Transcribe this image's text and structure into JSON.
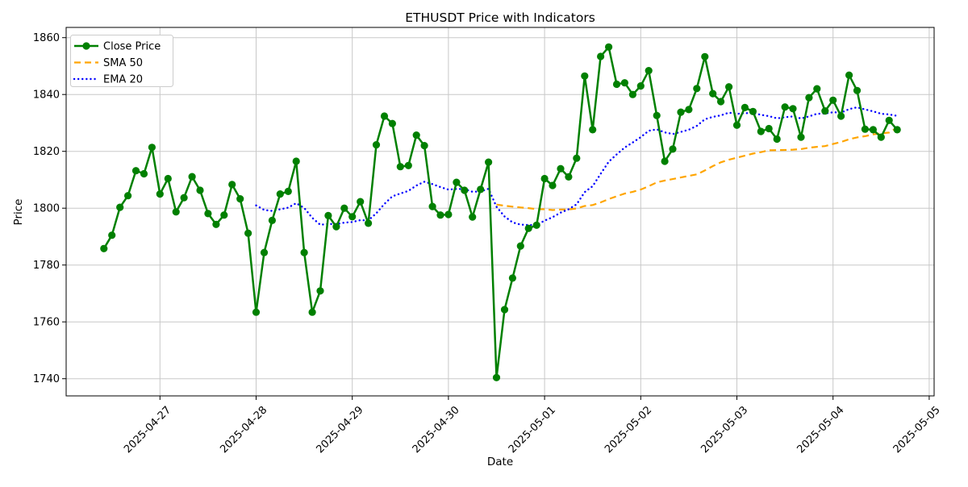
{
  "figure": {
    "title": "ETHUSDT Price with Indicators",
    "xlabel": "Date",
    "ylabel": "Price"
  },
  "legend": {
    "position": "upper left",
    "items": [
      {
        "label": "Close Price",
        "color": "#008000",
        "style": "solid_with_marker"
      },
      {
        "label": "SMA 50",
        "color": "#FFA500",
        "style": "dashed"
      },
      {
        "label": "EMA 20",
        "color": "#0000FF",
        "style": "dotted"
      }
    ]
  },
  "chart_data": {
    "type": "line",
    "title": "ETHUSDT Price with Indicators",
    "xlabel": "Date",
    "ylabel": "Price",
    "x_start": "2025-04-26 10:00",
    "x_interval_hours": 2,
    "n_points": 100,
    "x_tick_labels": [
      "2025-04-27",
      "2025-04-28",
      "2025-04-29",
      "2025-04-30",
      "2025-05-01",
      "2025-05-02",
      "2025-05-03",
      "2025-05-04",
      "2025-05-05"
    ],
    "yticks": [
      1740,
      1760,
      1780,
      1800,
      1820,
      1840,
      1860
    ],
    "ylim": [
      1734.0,
      1863.6
    ],
    "grid": true,
    "grid_color": "#c8c8c8",
    "series": [
      {
        "name": "Close Price",
        "color": "#008000",
        "style": "solid",
        "marker": "circle",
        "values": [
          1785.8,
          1790.5,
          1800.3,
          1804.4,
          1813.2,
          1812.1,
          1821.4,
          1805.0,
          1810.4,
          1798.7,
          1803.7,
          1811.1,
          1806.3,
          1798.1,
          1794.3,
          1797.6,
          1808.3,
          1803.3,
          1791.2,
          1763.4,
          1784.4,
          1795.7,
          1805.0,
          1805.9,
          1816.5,
          1784.4,
          1763.4,
          1770.9,
          1797.4,
          1793.5,
          1800.0,
          1797.0,
          1802.3,
          1794.7,
          1822.3,
          1832.4,
          1829.8,
          1814.6,
          1815.0,
          1825.7,
          1822.0,
          1800.6,
          1797.6,
          1797.8,
          1809.1,
          1806.3,
          1796.9,
          1806.6,
          1816.2,
          1740.4,
          1764.3,
          1775.4,
          1786.7,
          1792.9,
          1794.0,
          1810.4,
          1808.0,
          1813.9,
          1811.0,
          1817.6,
          1846.5,
          1827.6,
          1853.4,
          1856.7,
          1843.6,
          1844.1,
          1840.0,
          1843.0,
          1848.4,
          1832.6,
          1816.5,
          1820.8,
          1833.8,
          1834.7,
          1842.1,
          1853.3,
          1840.3,
          1837.5,
          1842.7,
          1829.2,
          1835.4,
          1834.0,
          1827.0,
          1828.0,
          1824.3,
          1835.6,
          1835.0,
          1825.0,
          1838.9,
          1842.0,
          1834.2,
          1838.0,
          1832.4,
          1846.8,
          1841.4,
          1827.8,
          1827.6,
          1825.0,
          1830.9,
          1827.6
        ]
      },
      {
        "name": "SMA 50",
        "color": "#FFA500",
        "style": "dashed",
        "derived_from": "Close Price",
        "method": "sma",
        "window": 50
      },
      {
        "name": "EMA 20",
        "color": "#0000FF",
        "style": "dotted",
        "derived_from": "Close Price",
        "method": "ema",
        "span": 20
      }
    ]
  }
}
